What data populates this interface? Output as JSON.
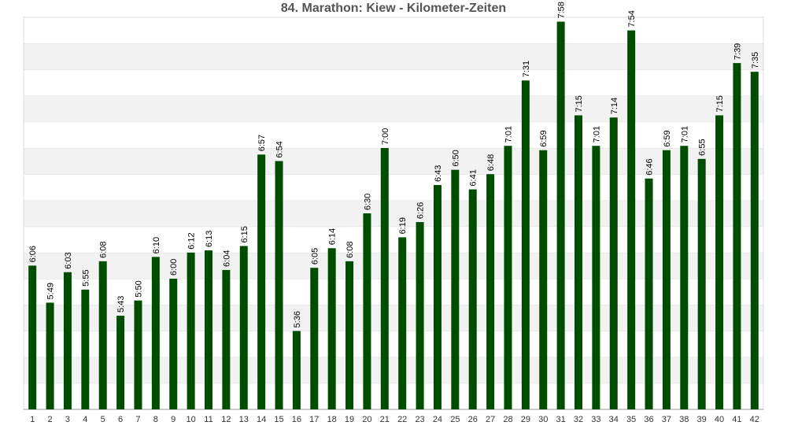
{
  "chart_data": {
    "type": "bar",
    "title": "84. Marathon: Kiew - Kilometer-Zeiten",
    "xlabel": "",
    "ylabel": "",
    "grid": true,
    "color": "#004d00",
    "categories": [
      "1",
      "2",
      "3",
      "4",
      "5",
      "6",
      "7",
      "8",
      "9",
      "10",
      "11",
      "12",
      "13",
      "14",
      "15",
      "16",
      "17",
      "18",
      "19",
      "20",
      "21",
      "22",
      "23",
      "24",
      "25",
      "26",
      "27",
      "28",
      "29",
      "30",
      "31",
      "32",
      "33",
      "34",
      "35",
      "36",
      "37",
      "38",
      "39",
      "40",
      "41",
      "42"
    ],
    "labels": [
      "6:06",
      "5:49",
      "6:03",
      "5:55",
      "6:08",
      "5:43",
      "5:50",
      "6:10",
      "6:00",
      "6:12",
      "6:13",
      "6:04",
      "6:15",
      "6:57",
      "6:54",
      "5:36",
      "6:05",
      "6:14",
      "6:08",
      "6:30",
      "7:00",
      "6:19",
      "6:26",
      "6:43",
      "6:50",
      "6:41",
      "6:48",
      "7:01",
      "7:31",
      "6:59",
      "7:58",
      "7:15",
      "7:01",
      "7:14",
      "7:54",
      "6:46",
      "6:59",
      "7:01",
      "6:55",
      "7:15",
      "7:39",
      "7:35"
    ],
    "values": [
      366,
      349,
      363,
      355,
      368,
      343,
      350,
      370,
      360,
      372,
      373,
      364,
      375,
      417,
      414,
      336,
      365,
      374,
      368,
      390,
      420,
      379,
      386,
      403,
      410,
      401,
      408,
      421,
      451,
      419,
      478,
      435,
      421,
      434,
      474,
      406,
      419,
      421,
      415,
      435,
      459,
      455
    ],
    "value_unit": "seconds per km",
    "ylim": [
      300,
      480
    ]
  }
}
